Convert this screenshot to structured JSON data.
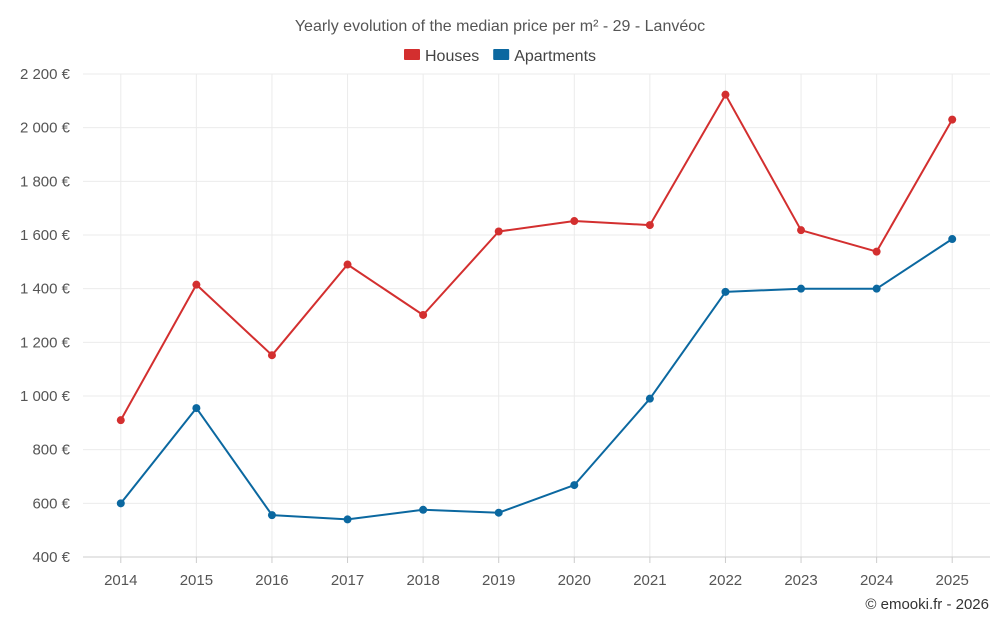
{
  "chart_data": {
    "type": "line",
    "title": "Yearly evolution of the median price per m² - 29 - Lanvéoc",
    "categories": [
      "2014",
      "2015",
      "2016",
      "2017",
      "2018",
      "2019",
      "2020",
      "2021",
      "2022",
      "2023",
      "2024",
      "2025"
    ],
    "series": [
      {
        "name": "Houses",
        "color": "#d32f2f",
        "values": [
          910,
          1415,
          1152,
          1490,
          1302,
          1613,
          1652,
          1637,
          2123,
          1618,
          1538,
          2030
        ]
      },
      {
        "name": "Apartments",
        "color": "#0b68a0",
        "values": [
          600,
          955,
          556,
          540,
          576,
          565,
          668,
          990,
          1388,
          1400,
          1400,
          1585
        ]
      }
    ],
    "y_ticks": [
      400,
      600,
      800,
      1000,
      1200,
      1400,
      1600,
      1800,
      2000,
      2200
    ],
    "y_tick_labels": [
      "400 €",
      "600 €",
      "800 €",
      "1 000 €",
      "1 200 €",
      "1 400 €",
      "1 600 €",
      "1 800 €",
      "2 000 €",
      "2 200 €"
    ],
    "ylim": [
      400,
      2200
    ],
    "xlabel": "",
    "ylabel": "",
    "grid": true,
    "legend_position": "top-center"
  },
  "credit": "© emooki.fr - 2026"
}
